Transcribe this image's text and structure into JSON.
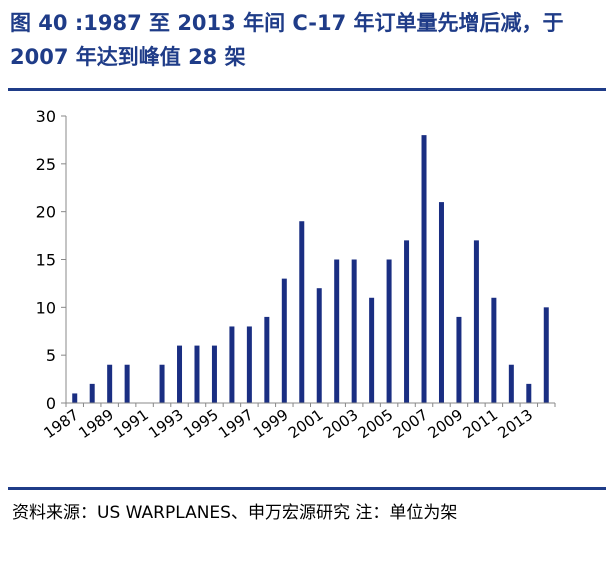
{
  "header": {
    "title": "图 40 :1987 至 2013 年间 C-17 年订单量先增后减，于 2007 年达到峰值 28 架"
  },
  "footer": {
    "source": "资料来源：US WARPLANES、申万宏源研究 注：单位为架"
  },
  "colors": {
    "accent": "#1f3c88",
    "bar": "#1a2e82"
  },
  "chart_data": {
    "type": "bar",
    "categories": [
      "1987",
      "1988",
      "1989",
      "1990",
      "1991",
      "1992",
      "1993",
      "1994",
      "1995",
      "1996",
      "1997",
      "1998",
      "1999",
      "2000",
      "2001",
      "2002",
      "2003",
      "2004",
      "2005",
      "2006",
      "2007",
      "2008",
      "2009",
      "2010",
      "2011",
      "2012",
      "2013",
      "2014"
    ],
    "values": [
      1,
      2,
      4,
      4,
      0,
      4,
      6,
      6,
      6,
      8,
      8,
      9,
      13,
      19,
      12,
      15,
      15,
      11,
      15,
      17,
      28,
      21,
      9,
      17,
      11,
      4,
      2,
      10
    ],
    "xtick_labels": [
      "1987",
      "1989",
      "1991",
      "1993",
      "1995",
      "1997",
      "1999",
      "2001",
      "2003",
      "2005",
      "2007",
      "2009",
      "2011",
      "2013"
    ],
    "yticks": [
      0,
      5,
      10,
      15,
      20,
      25,
      30
    ],
    "ylim": [
      0,
      30
    ],
    "grid": false,
    "legend": "none"
  }
}
